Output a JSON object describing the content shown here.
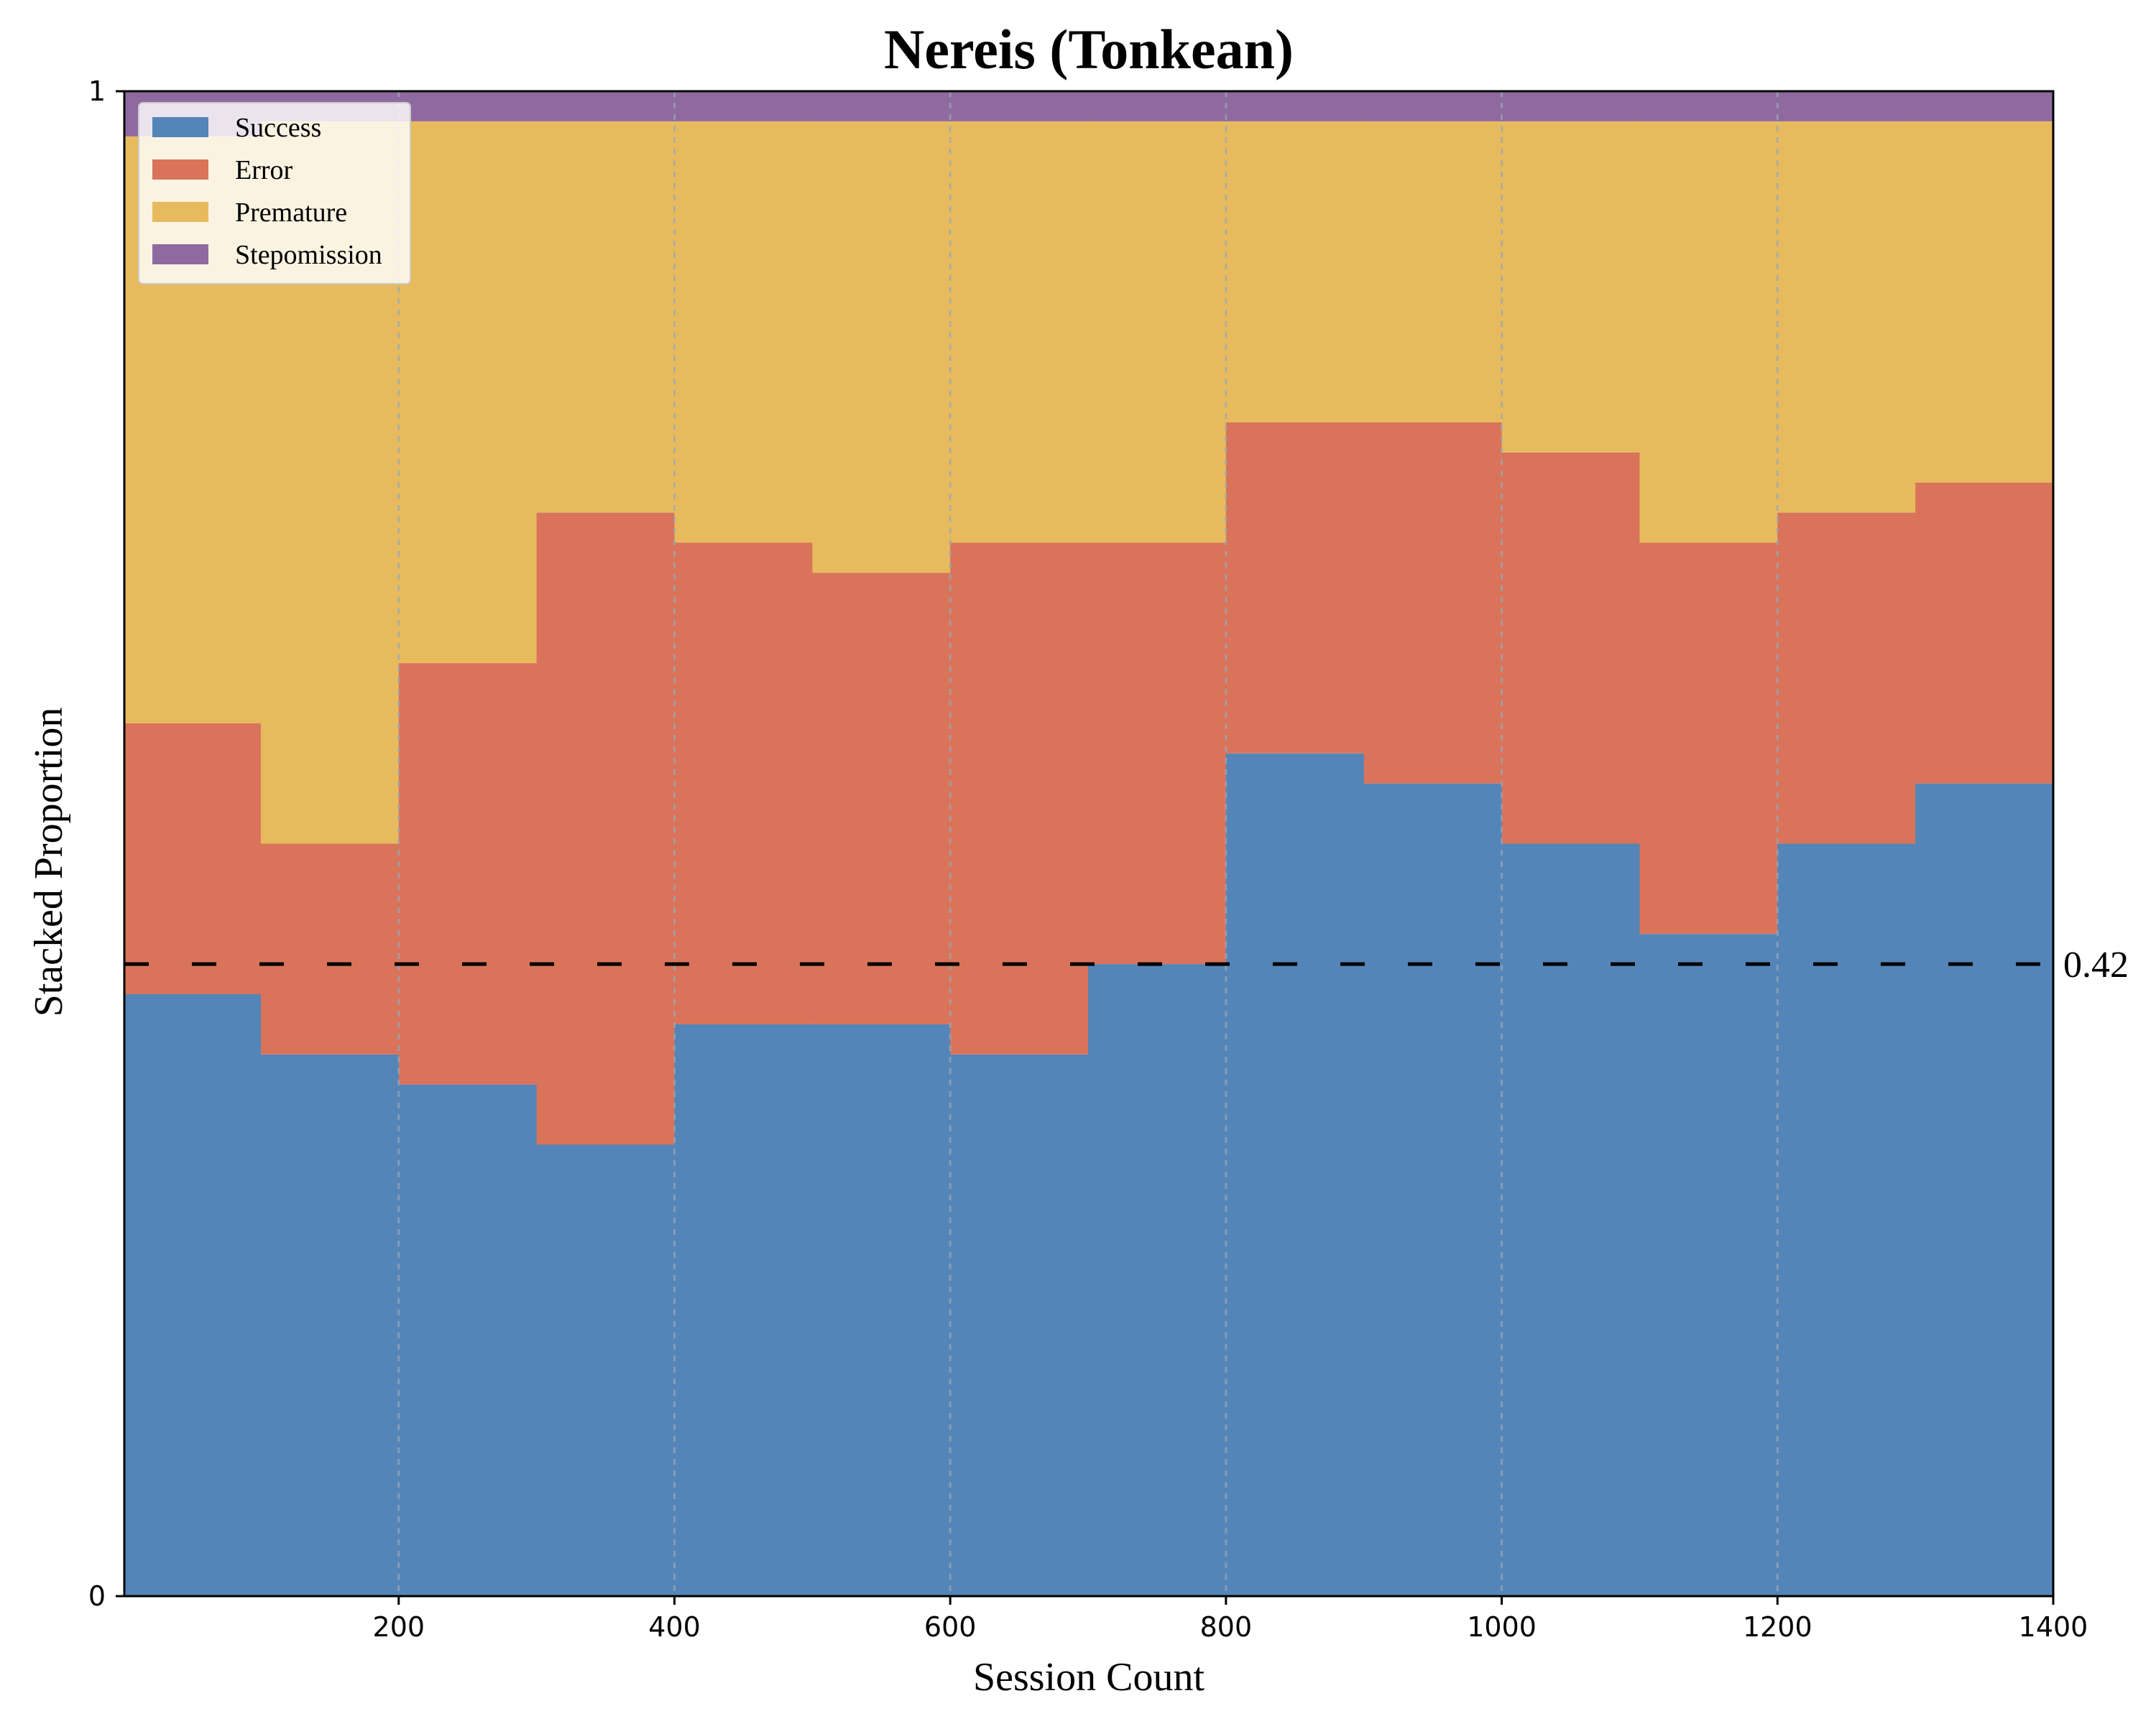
{
  "chart_data": {
    "type": "area",
    "stacked": true,
    "title": "Nereis (Tonkean)",
    "xlabel": "Session Count",
    "ylabel": "Stacked Proportion",
    "xlim": [
      1,
      1400
    ],
    "ylim": [
      0,
      1
    ],
    "xticks": [
      200,
      400,
      600,
      800,
      1000,
      1200,
      1400
    ],
    "yticks": [
      0,
      1
    ],
    "xtick_labels": [
      "200",
      "400",
      "600",
      "800",
      "1000",
      "1200",
      "1400"
    ],
    "ytick_labels": [
      "0",
      "1"
    ],
    "grid": "vertical dotted at x ticks",
    "legend_position": "top-left",
    "reference_line": {
      "y": 0.42,
      "style": "dashed",
      "label": "0.42"
    },
    "series": [
      {
        "name": "Success",
        "color": "#5485b8"
      },
      {
        "name": "Error",
        "color": "#d9735a"
      },
      {
        "name": "Premature",
        "color": "#e7bb5d"
      },
      {
        "name": "Stepomission",
        "color": "#8f6aa0"
      }
    ],
    "segments": [
      {
        "x": [
          1,
          100
        ],
        "success": 0.4,
        "error": 0.18,
        "premature": 0.39,
        "stepomission": 0.03
      },
      {
        "x": [
          100,
          200
        ],
        "success": 0.36,
        "error": 0.14,
        "premature": 0.48,
        "stepomission": 0.02
      },
      {
        "x": [
          200,
          300
        ],
        "success": 0.34,
        "error": 0.28,
        "premature": 0.36,
        "stepomission": 0.02
      },
      {
        "x": [
          300,
          400
        ],
        "success": 0.3,
        "error": 0.42,
        "premature": 0.26,
        "stepomission": 0.02
      },
      {
        "x": [
          400,
          500
        ],
        "success": 0.38,
        "error": 0.32,
        "premature": 0.28,
        "stepomission": 0.02
      },
      {
        "x": [
          500,
          600
        ],
        "success": 0.38,
        "error": 0.3,
        "premature": 0.3,
        "stepomission": 0.02
      },
      {
        "x": [
          600,
          700
        ],
        "success": 0.36,
        "error": 0.34,
        "premature": 0.28,
        "stepomission": 0.02
      },
      {
        "x": [
          700,
          800
        ],
        "success": 0.42,
        "error": 0.28,
        "premature": 0.28,
        "stepomission": 0.02
      },
      {
        "x": [
          800,
          900
        ],
        "success": 0.56,
        "error": 0.22,
        "premature": 0.2,
        "stepomission": 0.02
      },
      {
        "x": [
          900,
          1000
        ],
        "success": 0.54,
        "error": 0.24,
        "premature": 0.2,
        "stepomission": 0.02
      },
      {
        "x": [
          1000,
          1100
        ],
        "success": 0.5,
        "error": 0.26,
        "premature": 0.22,
        "stepomission": 0.02
      },
      {
        "x": [
          1100,
          1200
        ],
        "success": 0.44,
        "error": 0.26,
        "premature": 0.28,
        "stepomission": 0.02
      },
      {
        "x": [
          1200,
          1300
        ],
        "success": 0.5,
        "error": 0.22,
        "premature": 0.26,
        "stepomission": 0.02
      },
      {
        "x": [
          1300,
          1400
        ],
        "success": 0.54,
        "error": 0.2,
        "premature": 0.24,
        "stepomission": 0.02
      }
    ]
  }
}
